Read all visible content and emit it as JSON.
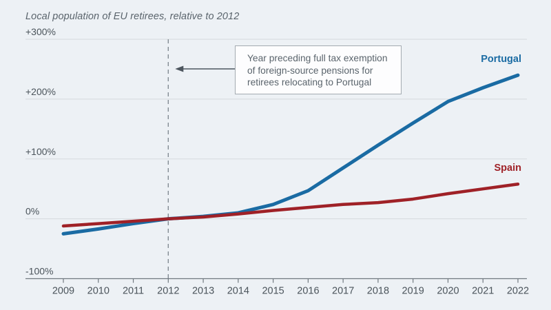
{
  "header": {
    "title": "Local population of EU retirees, relative to 2012"
  },
  "annotation": {
    "lines": [
      "Year preceding full tax exemption",
      "of foreign-source pensions for",
      "retirees relocating to Portugal"
    ],
    "arrow_direction": "left",
    "points_to_year": 2012
  },
  "chart_data": {
    "type": "line",
    "title": "Local population of EU retirees, relative to 2012",
    "x": [
      2009,
      2010,
      2011,
      2012,
      2013,
      2014,
      2015,
      2016,
      2017,
      2018,
      2019,
      2020,
      2021,
      2022
    ],
    "series": [
      {
        "name": "Portugal",
        "color": "#1a6ba3",
        "values": [
          -25,
          -17,
          -8,
          0,
          4,
          10,
          24,
          47,
          85,
          123,
          160,
          196,
          219,
          240
        ]
      },
      {
        "name": "Spain",
        "color": "#9f2127",
        "values": [
          -12,
          -8,
          -4,
          0,
          3,
          8,
          14,
          19,
          24,
          27,
          33,
          42,
          50,
          58
        ]
      }
    ],
    "ylim": [
      -100,
      300
    ],
    "yticks": [
      {
        "value": 300,
        "label": "+300%"
      },
      {
        "value": 200,
        "label": "+200%"
      },
      {
        "value": 100,
        "label": "+100%"
      },
      {
        "value": 0,
        "label": "0%"
      },
      {
        "value": -100,
        "label": "-100%"
      }
    ],
    "xticks": [
      "2009",
      "2010",
      "2011",
      "2012",
      "2013",
      "2014",
      "2015",
      "2016",
      "2017",
      "2018",
      "2019",
      "2020",
      "2021",
      "2022"
    ],
    "grid": true,
    "vline": {
      "x": 2012,
      "style": "dashed"
    },
    "legend_position": "end-of-line-labels"
  },
  "colors": {
    "background": "#edf1f5",
    "gridline": "#d5d9dd",
    "axis": "#70787f",
    "tick_label": "#4b545b",
    "muted_text": "#5a646c",
    "dashed_line": "#838c94",
    "annotation_border": "#a3aab0",
    "annotation_background": "#fdfdfe",
    "portugal": "#1a6ba3",
    "spain": "#9f2127"
  }
}
